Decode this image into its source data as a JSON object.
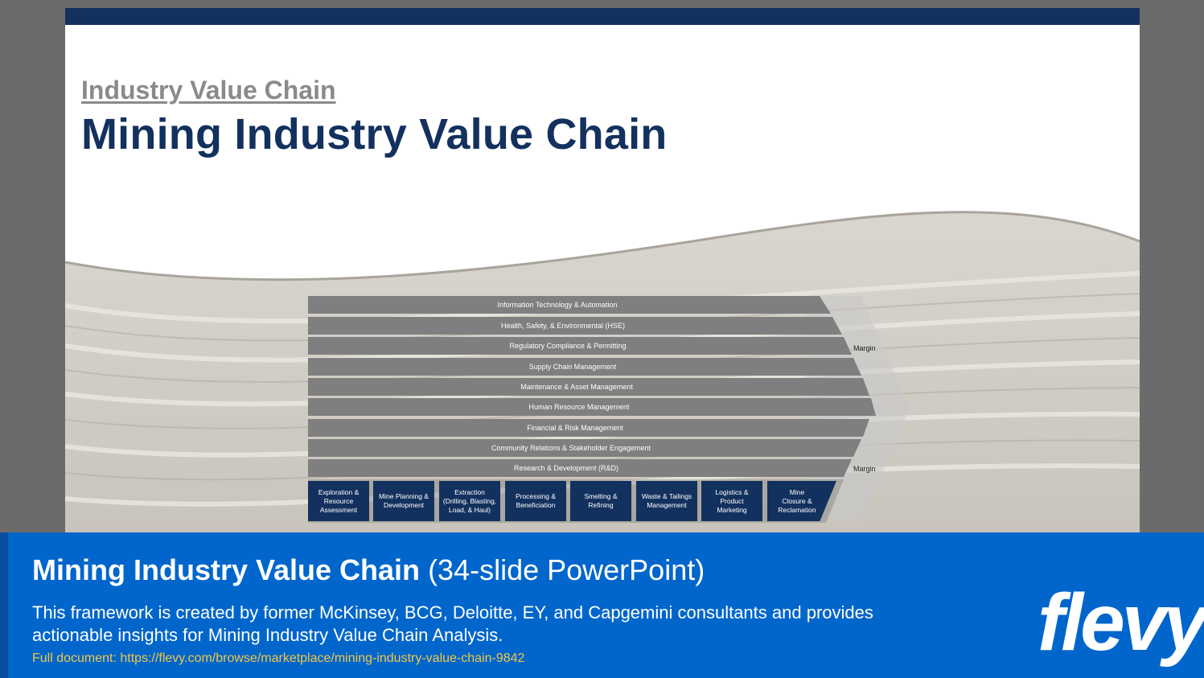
{
  "slide": {
    "subtitle": "Industry Value Chain",
    "title": "Mining Industry Value Chain"
  },
  "diagram": {
    "support_activities": [
      "Information Technology & Automation",
      "Health, Safety, & Environmental (HSE)",
      "Regulatory Compliance & Permitting",
      "Supply Chain Management",
      "Maintenance & Asset Management",
      "Human Resource Management",
      "Financial & Risk Management",
      "Community Relations & Stakeholder Engagement",
      "Research & Development (R&D)"
    ],
    "primary_activities": [
      "Exploration &\nResource\nAssessment",
      "Mine Planning &\nDevelopment",
      "Extraction\n(Drilling, Blasting,\nLoad, & Haul)",
      "Processing &\nBeneficiation",
      "Smelting &\nRefining",
      "Waste & Tailings\nManagement",
      "Logistics &\nProduct\nMarketing",
      "Mine\nClosure &\nReclamation"
    ],
    "margin_top": "Margin",
    "margin_bottom": "Margin",
    "colors": {
      "support_fill": "#7f7f7f",
      "primary_fill": "#13315e",
      "chevron_fill": "#c8c8c8"
    }
  },
  "banner": {
    "title_bold": "Mining Industry Value Chain",
    "title_light": "(34-slide PowerPoint)",
    "description": "This framework is created by former McKinsey, BCG, Deloitte, EY, and Capgemini consultants and provides actionable insights for Mining Industry Value Chain Analysis.",
    "link": "Full document: https://flevy.com/browse/marketplace/mining-industry-value-chain-9842",
    "logo": "flevy"
  }
}
